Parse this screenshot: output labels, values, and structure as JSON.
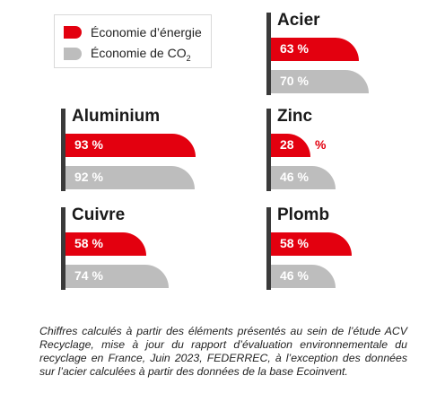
{
  "legend": {
    "energy_label": "Économie d’énergie",
    "co2_label_main": "Économie de CO",
    "co2_label_sub": "2"
  },
  "colors": {
    "energy": "#e3000f",
    "co2": "#bdbdbd"
  },
  "chart_data": {
    "type": "bar",
    "title": "",
    "xlim": [
      0,
      100
    ],
    "series": [
      {
        "name": "Économie d’énergie",
        "color": "#e3000f"
      },
      {
        "name": "Économie de CO2",
        "color": "#bdbdbd"
      }
    ],
    "panels": [
      {
        "title": "Acier",
        "energy": 63,
        "co2": 70,
        "energy_label": "63 %",
        "co2_label": "70 %"
      },
      {
        "title": "Aluminium",
        "energy": 93,
        "co2": 92,
        "energy_label": "93 %",
        "co2_label": "92 %"
      },
      {
        "title": "Zinc",
        "energy": 28,
        "co2": 46,
        "energy_label": "28",
        "energy_label_unit": "%",
        "co2_label": "46 %"
      },
      {
        "title": "Cuivre",
        "energy": 58,
        "co2": 74,
        "energy_label": "58 %",
        "co2_label": "74 %"
      },
      {
        "title": "Plomb",
        "energy": 58,
        "co2": 46,
        "energy_label": "58 %",
        "co2_label": "46 %"
      }
    ]
  },
  "footnote": "Chiffres calculés à partir des éléments présentés au sein de l’étude ACV Recyclage, mise à jour du rapport d’évaluation environnementale du recyclage en France, Juin 2023, FEDERREC, à l’exception des données sur l’acier calculées à partir des données de la base Ecoinvent."
}
